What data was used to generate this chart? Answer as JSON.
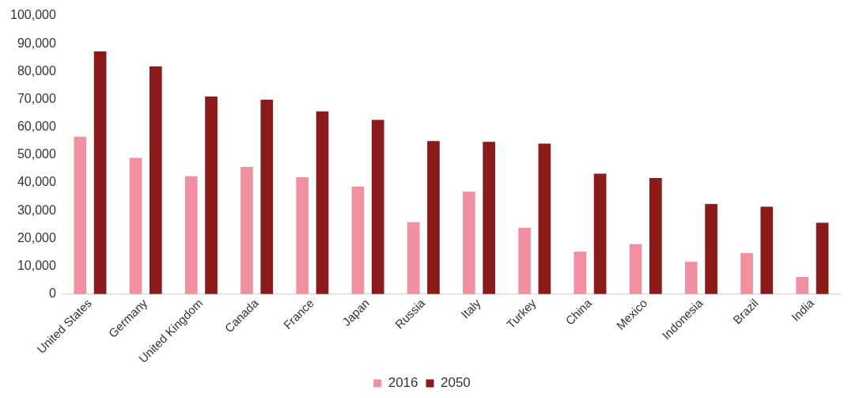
{
  "chart_data": {
    "type": "bar",
    "categories": [
      "United States",
      "Germany",
      "United Kingdom",
      "Canada",
      "France",
      "Japan",
      "Russia",
      "Italy",
      "Turkey",
      "China",
      "Mexico",
      "Indonesia",
      "Brazil",
      "India"
    ],
    "series": [
      {
        "name": "2016",
        "color": "#f090a0",
        "values": [
          56600,
          49000,
          42400,
          45700,
          42000,
          38700,
          25900,
          36800,
          23900,
          15300,
          18000,
          11700,
          14800,
          6200
        ]
      },
      {
        "name": "2050",
        "color": "#8b1a1a",
        "values": [
          87200,
          81800,
          71000,
          69900,
          65700,
          62600,
          55000,
          54700,
          54100,
          43300,
          41700,
          32400,
          31400,
          25700
        ]
      }
    ],
    "ylim": [
      0,
      100000
    ],
    "yticks": [
      {
        "value": 0,
        "label": "0"
      },
      {
        "value": 10000,
        "label": "10,000"
      },
      {
        "value": 20000,
        "label": "20,000"
      },
      {
        "value": 30000,
        "label": "30,000"
      },
      {
        "value": 40000,
        "label": "40,000"
      },
      {
        "value": 50000,
        "label": "50,000"
      },
      {
        "value": 60000,
        "label": "60,000"
      },
      {
        "value": 70000,
        "label": "70,000"
      },
      {
        "value": 80000,
        "label": "80,000"
      },
      {
        "value": 90000,
        "label": "90,000"
      },
      {
        "value": 100000,
        "label": "100,000"
      }
    ],
    "grid": false,
    "legend": "bottom"
  }
}
